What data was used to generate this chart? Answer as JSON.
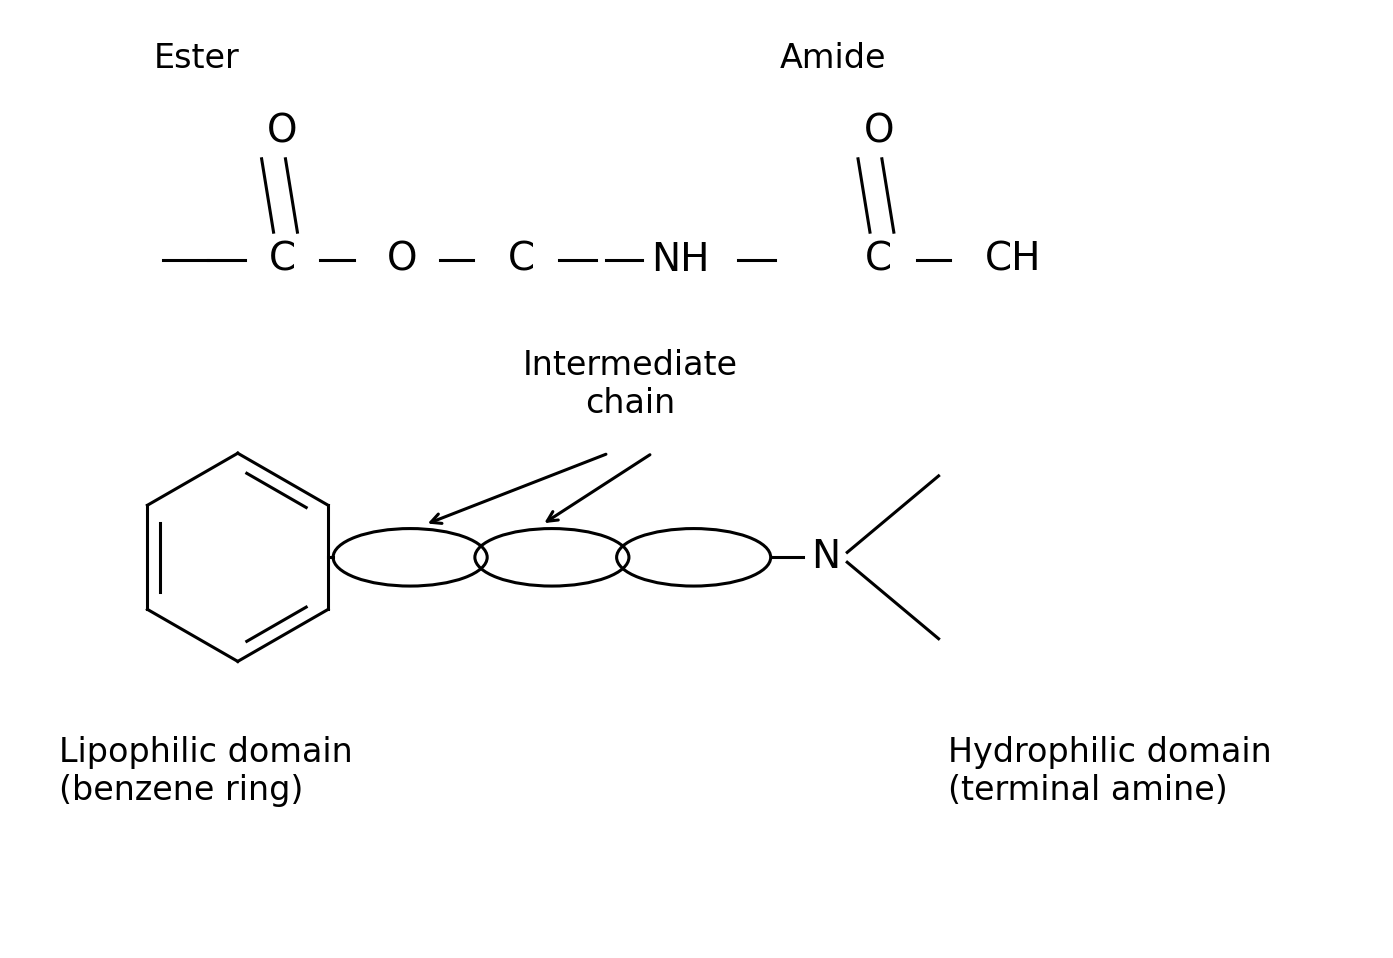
{
  "background_color": "#ffffff",
  "fig_width": 13.93,
  "fig_height": 9.58,
  "font_family": "DejaVu Sans",
  "label_ester": "Ester",
  "label_amide": "Amide",
  "label_intermediate": "Intermediate\nchain",
  "label_lipophilic": "Lipophilic domain\n(benzene ring)",
  "label_hydrophilic": "Hydrophilic domain\n(terminal amine)",
  "label_font_size": 24,
  "chem_font_size": 28,
  "domain_font_size": 24,
  "line_width": 2.2
}
